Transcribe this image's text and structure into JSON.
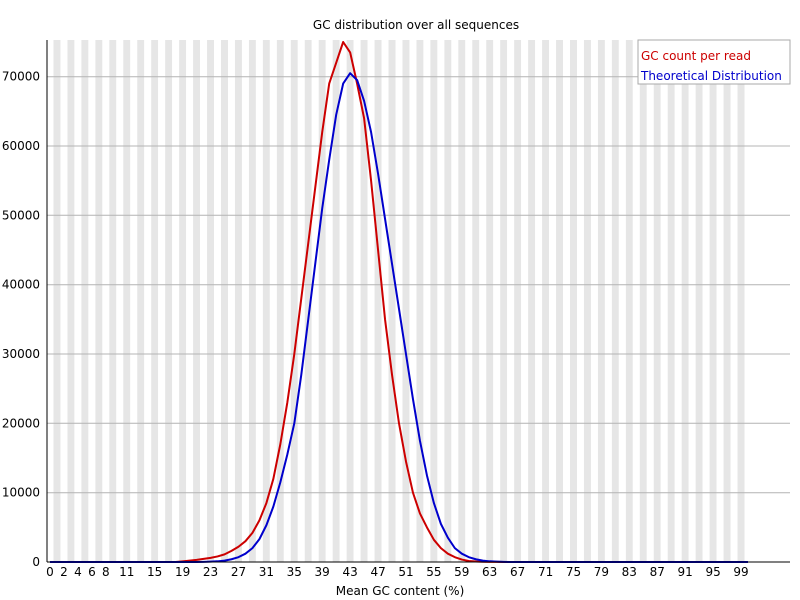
{
  "chart_data": {
    "type": "line",
    "title": "GC distribution over all sequences",
    "xlabel": "Mean GC content (%)",
    "ylabel": "",
    "xlim": [
      0,
      100
    ],
    "ylim": [
      0,
      75000
    ],
    "x_tick_labels": [
      "0",
      "2",
      "4",
      "6",
      "8",
      "11",
      "15",
      "19",
      "23",
      "27",
      "31",
      "35",
      "39",
      "43",
      "47",
      "51",
      "55",
      "59",
      "63",
      "67",
      "71",
      "75",
      "79",
      "83",
      "87",
      "91",
      "95",
      "99"
    ],
    "y_tick_labels": [
      "0",
      "10000",
      "20000",
      "30000",
      "40000",
      "50000",
      "60000",
      "70000"
    ],
    "y_tick_values": [
      0,
      10000,
      20000,
      30000,
      40000,
      50000,
      60000,
      70000
    ],
    "grid": true,
    "legend_position": "top-right",
    "series": [
      {
        "name": "GC count per read",
        "color": "#cc0000",
        "values": [
          0,
          0,
          0,
          0,
          0,
          0,
          0,
          0,
          0,
          0,
          0,
          0,
          0,
          0,
          0,
          0,
          0,
          0,
          0,
          100,
          200,
          300,
          450,
          600,
          800,
          1100,
          1600,
          2200,
          3000,
          4200,
          6000,
          8500,
          12000,
          17000,
          23000,
          30000,
          38000,
          46000,
          54000,
          62000,
          69000,
          72000,
          75000,
          73500,
          69000,
          64000,
          55000,
          45000,
          35000,
          27000,
          20000,
          14500,
          10000,
          7000,
          5000,
          3200,
          2000,
          1200,
          700,
          350,
          150,
          80,
          40,
          20,
          10,
          0,
          0,
          0,
          0,
          0,
          0,
          0,
          0,
          0,
          0,
          0,
          0,
          0,
          0,
          0,
          0,
          0,
          0,
          0,
          0,
          0,
          0,
          0,
          0,
          0,
          0,
          0,
          0,
          0,
          0,
          0,
          0,
          0,
          0,
          0,
          0
        ]
      },
      {
        "name": "Theoretical Distribution",
        "color": "#0000cc",
        "values": [
          0,
          0,
          0,
          0,
          0,
          0,
          0,
          0,
          0,
          0,
          0,
          0,
          0,
          0,
          0,
          0,
          0,
          0,
          0,
          0,
          0,
          0,
          20,
          50,
          100,
          200,
          400,
          700,
          1200,
          2000,
          3300,
          5300,
          8000,
          11500,
          15500,
          20000,
          27000,
          35000,
          43000,
          51000,
          58000,
          64500,
          69000,
          70500,
          69500,
          66500,
          62000,
          56000,
          49500,
          43000,
          36500,
          30000,
          23500,
          17500,
          12500,
          8500,
          5500,
          3500,
          2000,
          1200,
          700,
          400,
          200,
          100,
          50,
          20,
          0,
          0,
          0,
          0,
          0,
          0,
          0,
          0,
          0,
          0,
          0,
          0,
          0,
          0,
          0,
          0,
          0,
          0,
          0,
          0,
          0,
          0,
          0,
          0,
          0,
          0,
          0,
          0,
          0,
          0,
          0,
          0,
          0,
          0,
          0
        ]
      }
    ]
  }
}
